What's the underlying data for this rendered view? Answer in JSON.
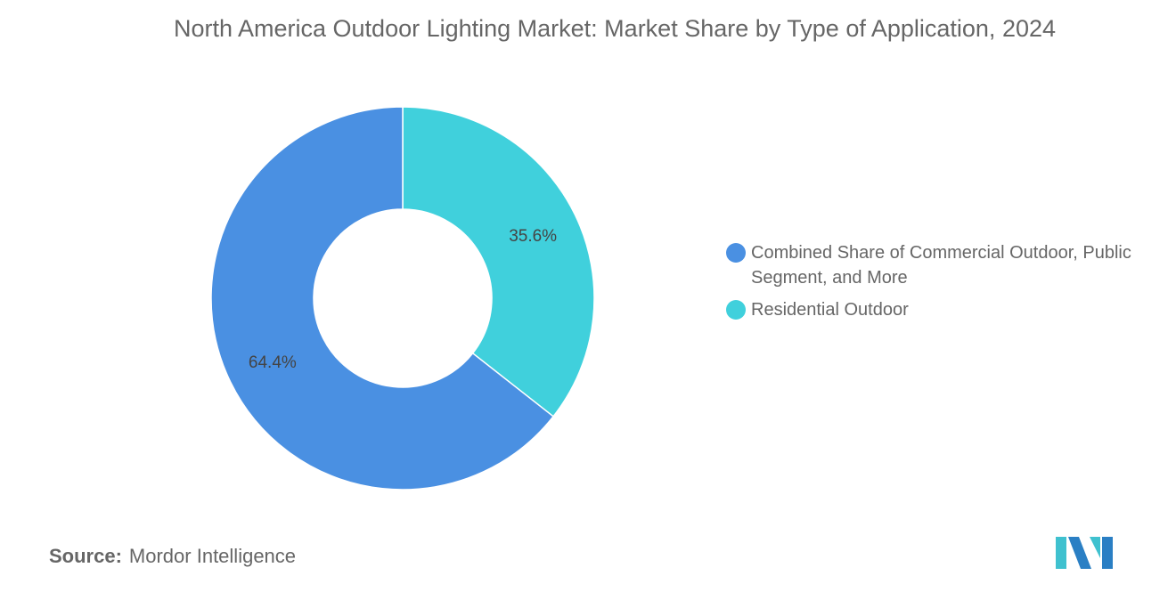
{
  "chart_data": {
    "type": "pie",
    "title": "North America Outdoor Lighting Market: Market Share by Type of Application, 2024",
    "donut": true,
    "categories": [
      "Residential Outdoor",
      "Combined Share of Commercial Outdoor, Public Segment, and More"
    ],
    "values": [
      35.6,
      64.4
    ],
    "labels": [
      "35.6%",
      "64.4%"
    ],
    "colors": [
      "#40d0dc",
      "#4a90e2"
    ],
    "legend": {
      "position": "right",
      "items": [
        {
          "label": "Combined Share of Commercial Outdoor, Public Segment, and More",
          "color": "#4a90e2"
        },
        {
          "label": "Residential Outdoor",
          "color": "#40d0dc"
        }
      ]
    }
  },
  "source": {
    "label": "Source:",
    "value": "Mordor Intelligence"
  }
}
